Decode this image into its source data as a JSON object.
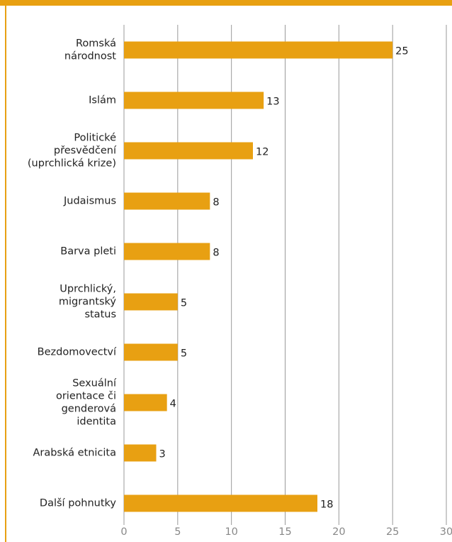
{
  "chart_data": {
    "type": "barh",
    "categories": [
      [
        "Romská",
        "národnost"
      ],
      [
        "Islám"
      ],
      [
        "Politické",
        "přesvědčení",
        "(uprchlická krize)"
      ],
      [
        "Judaismus"
      ],
      [
        "Barva pleti"
      ],
      [
        "Uprchlický,",
        "migrantský",
        "status"
      ],
      [
        "Bezdomovectví"
      ],
      [
        "Sexuální",
        "orientace či",
        "genderová",
        "identita"
      ],
      [
        "Arabská etnicita"
      ],
      [
        "Další pohnutky"
      ]
    ],
    "values": [
      25,
      13,
      12,
      8,
      8,
      5,
      5,
      4,
      3,
      18
    ],
    "color": "#e8a012",
    "xlim": [
      0,
      30
    ],
    "xticks": [
      0,
      5,
      10,
      15,
      20,
      25,
      30
    ],
    "grid": true
  }
}
